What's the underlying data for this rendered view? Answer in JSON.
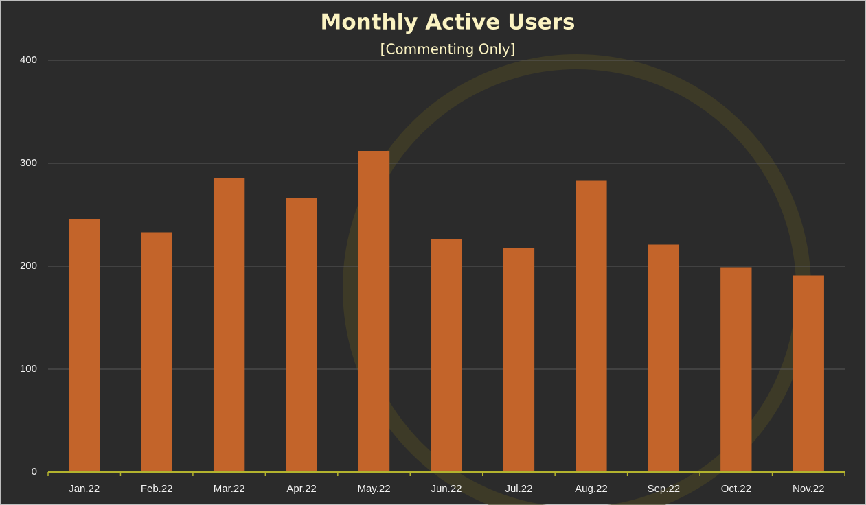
{
  "chart_data": {
    "type": "bar",
    "title": "Monthly Active Users",
    "subtitle": "[Commenting Only]",
    "categories": [
      "Jan.22",
      "Feb.22",
      "Mar.22",
      "Apr.22",
      "May.22",
      "Jun.22",
      "Jul.22",
      "Aug.22",
      "Sep.22",
      "Oct.22",
      "Nov.22"
    ],
    "values": [
      246,
      233,
      286,
      266,
      312,
      226,
      218,
      283,
      221,
      199,
      191
    ],
    "color": "#c3642a",
    "ylim": [
      0,
      400
    ],
    "yticks": [
      0,
      100,
      200,
      300,
      400
    ],
    "grid": true
  }
}
